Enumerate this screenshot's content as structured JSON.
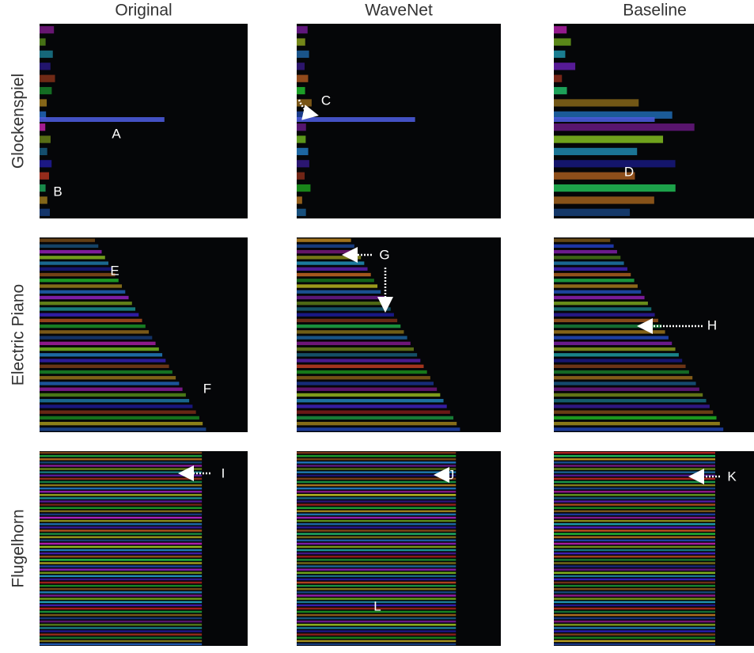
{
  "columns": [
    "Original",
    "WaveNet",
    "Baseline"
  ],
  "rows": [
    "Glockenspiel",
    "Electric Piano",
    "Flugelhorn"
  ],
  "annotations": [
    "A",
    "B",
    "C",
    "D",
    "E",
    "F",
    "G",
    "H",
    "I",
    "J",
    "K",
    "L"
  ]
}
